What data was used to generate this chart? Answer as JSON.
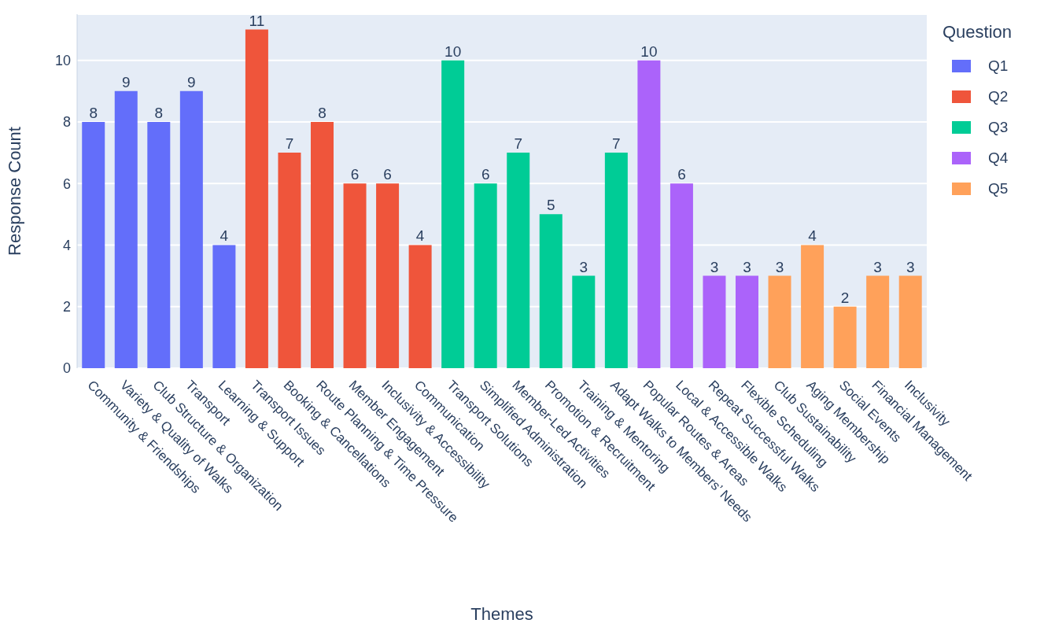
{
  "chart_data": {
    "type": "bar",
    "xlabel": "Themes",
    "ylabel": "Response Count",
    "legend_title": "Question",
    "legend": "top right",
    "grid": "y",
    "stacked": true,
    "data_labels": true,
    "categories": [
      "Community & Friendships",
      "Variety & Quality of Walks",
      "Club Structure & Organization",
      "Transport",
      "Learning & Support",
      "Transport Issues",
      "Booking & Cancellations",
      "Route Planning & Time Pressure",
      "Member Engagement",
      "Inclusivity & Accessibility",
      "Communication",
      "Transport Solutions",
      "Simplified Administration",
      "Member-Led Activities",
      "Promotion & Recruitment",
      "Training & Mentoring",
      "Adapt Walks to Members’ Needs",
      "Popular Routes & Areas",
      "Local & Accessible Walks",
      "Repeat Successful Walks",
      "Flexible Scheduling",
      "Club Sustainability",
      "Aging Membership",
      "Social Events",
      "Financial Management",
      "Inclusivity"
    ],
    "ylim": [
      0,
      11.5
    ],
    "yticks": [
      0,
      2,
      4,
      6,
      8,
      10
    ],
    "series": [
      {
        "name": "Q1",
        "color": "#636efa",
        "values": [
          8,
          9,
          8,
          9,
          4,
          null,
          null,
          null,
          null,
          null,
          null,
          null,
          null,
          null,
          null,
          null,
          null,
          null,
          null,
          null,
          null,
          null,
          null,
          null,
          null,
          null
        ]
      },
      {
        "name": "Q2",
        "color": "#ef553b",
        "values": [
          null,
          null,
          null,
          null,
          null,
          11,
          7,
          8,
          6,
          6,
          4,
          null,
          null,
          null,
          null,
          null,
          null,
          null,
          null,
          null,
          null,
          null,
          null,
          null,
          null,
          null
        ]
      },
      {
        "name": "Q3",
        "color": "#00cc96",
        "values": [
          null,
          null,
          null,
          null,
          null,
          null,
          null,
          null,
          null,
          null,
          null,
          10,
          6,
          7,
          5,
          3,
          7,
          null,
          null,
          null,
          null,
          null,
          null,
          null,
          null,
          null
        ]
      },
      {
        "name": "Q4",
        "color": "#ab63fa",
        "values": [
          null,
          null,
          null,
          null,
          null,
          null,
          null,
          null,
          null,
          null,
          null,
          null,
          null,
          null,
          null,
          null,
          null,
          10,
          6,
          3,
          3,
          null,
          null,
          null,
          null,
          null
        ]
      },
      {
        "name": "Q5",
        "color": "#ffa15a",
        "values": [
          null,
          null,
          null,
          null,
          null,
          null,
          null,
          null,
          null,
          null,
          null,
          null,
          null,
          null,
          null,
          null,
          null,
          null,
          null,
          null,
          null,
          3,
          4,
          2,
          3,
          3
        ]
      }
    ]
  }
}
